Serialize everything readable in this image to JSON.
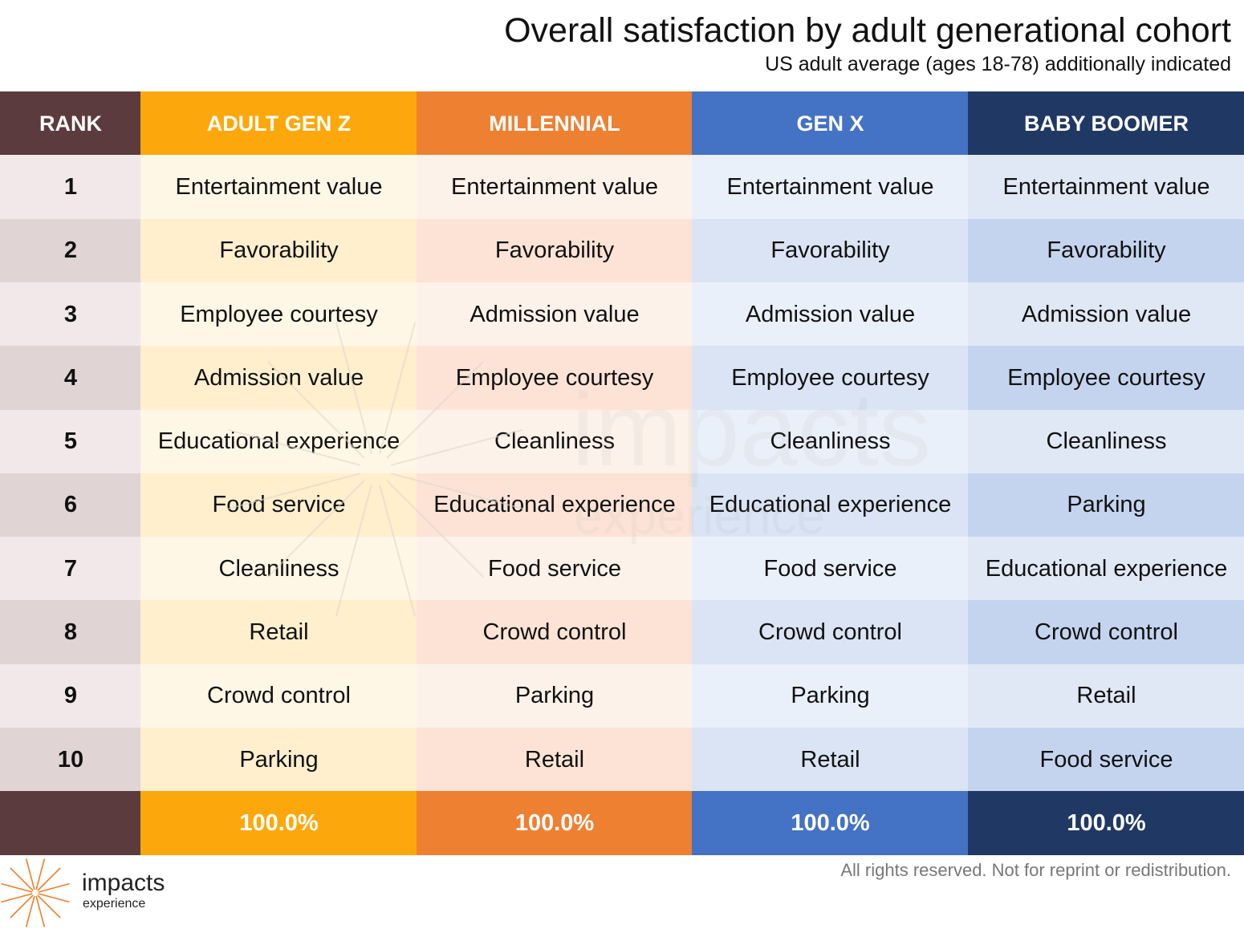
{
  "chart_data": {
    "type": "table",
    "title": "Overall satisfaction by adult generational cohort",
    "subtitle": "US adult average (ages 18-78) additionally indicated",
    "columns": [
      {
        "label": "RANK",
        "color": "#5b3b3e",
        "light": "#f2e8ea",
        "dark": "#e0d4d5"
      },
      {
        "label": "ADULT GEN Z",
        "color": "#fca80c",
        "light": "#fff7e6",
        "dark": "#ffefcd"
      },
      {
        "label": "MILLENNIAL",
        "color": "#ee8032",
        "light": "#fcf2ea",
        "dark": "#fde3d6"
      },
      {
        "label": "GEN X",
        "color": "#4472c4",
        "light": "#eaf0f9",
        "dark": "#dae4f4"
      },
      {
        "label": "BABY BOOMER",
        "color": "#203864",
        "light": "#e0e8f5",
        "dark": "#c5d4ee"
      }
    ],
    "rows": [
      {
        "rank": "1",
        "values": [
          "Entertainment value",
          "Entertainment value",
          "Entertainment value",
          "Entertainment value"
        ]
      },
      {
        "rank": "2",
        "values": [
          "Favorability",
          "Favorability",
          "Favorability",
          "Favorability"
        ]
      },
      {
        "rank": "3",
        "values": [
          "Employee courtesy",
          "Admission value",
          "Admission value",
          "Admission value"
        ]
      },
      {
        "rank": "4",
        "values": [
          "Admission value",
          "Employee courtesy",
          "Employee courtesy",
          "Employee courtesy"
        ]
      },
      {
        "rank": "5",
        "values": [
          "Educational experience",
          "Cleanliness",
          "Cleanliness",
          "Cleanliness"
        ]
      },
      {
        "rank": "6",
        "values": [
          "Food service",
          "Educational experience",
          "Educational experience",
          "Parking"
        ]
      },
      {
        "rank": "7",
        "values": [
          "Cleanliness",
          "Food service",
          "Food service",
          "Educational experience"
        ]
      },
      {
        "rank": "8",
        "values": [
          "Retail",
          "Crowd control",
          "Crowd control",
          "Crowd control"
        ]
      },
      {
        "rank": "9",
        "values": [
          "Crowd control",
          "Parking",
          "Parking",
          "Retail"
        ]
      },
      {
        "rank": "10",
        "values": [
          "Parking",
          "Retail",
          "Retail",
          "Food service"
        ]
      }
    ],
    "footer": [
      "",
      "100.0%",
      "100.0%",
      "100.0%",
      "100.0%"
    ]
  },
  "branding": {
    "logo_text": "impacts",
    "logo_sub": "experience",
    "watermark_text": "impacts",
    "watermark_sub": "experience",
    "logo_color": "#f07d28"
  },
  "rights": "All rights reserved. Not for reprint or redistribution."
}
